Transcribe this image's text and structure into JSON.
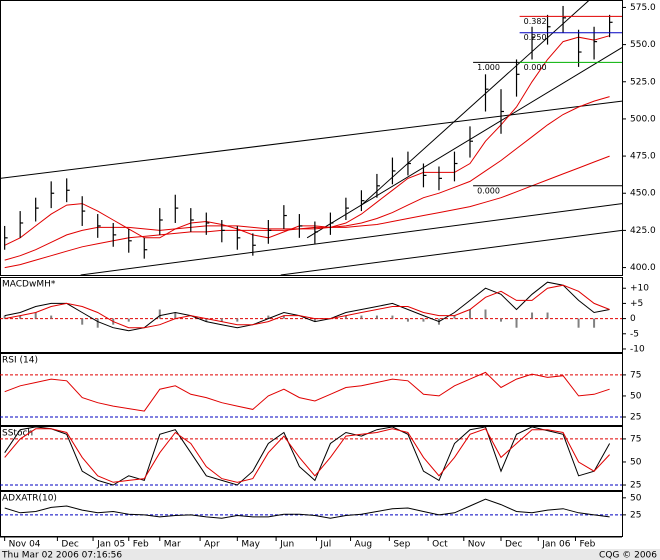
{
  "chart_data": [
    {
      "type": "ohlc",
      "color": "#000000",
      "xlim": [
        -0.3,
        39.8
      ],
      "xticks": [
        {
          "value": 0,
          "label": "Nov 04"
        },
        {
          "value": 3.4,
          "label": "Dec"
        },
        {
          "value": 5.7,
          "label": "Jan 05"
        },
        {
          "value": 8.0,
          "label": "Feb"
        },
        {
          "value": 10.0,
          "label": "Mar"
        },
        {
          "value": 12.6,
          "label": "Apr"
        },
        {
          "value": 15.0,
          "label": "May"
        },
        {
          "value": 17.5,
          "label": "Jun"
        },
        {
          "value": 20.1,
          "label": "Jul"
        },
        {
          "value": 22.3,
          "label": "Aug"
        },
        {
          "value": 24.8,
          "label": "Sep"
        },
        {
          "value": 27.3,
          "label": "Oct"
        },
        {
          "value": 29.6,
          "label": "Nov"
        },
        {
          "value": 32.0,
          "label": "Dec"
        },
        {
          "value": 34.4,
          "label": "Jan 06"
        },
        {
          "value": 36.8,
          "label": "Feb"
        }
      ],
      "ylim": [
        395,
        580
      ],
      "yticks": [
        {
          "value": 400,
          "label": "400.0"
        },
        {
          "value": 425,
          "label": "425.0"
        },
        {
          "value": 450,
          "label": "450.0"
        },
        {
          "value": 475,
          "label": "475.0"
        },
        {
          "value": 500,
          "label": "500.0"
        },
        {
          "value": 525,
          "label": "525.0"
        },
        {
          "value": 550,
          "label": "550.0"
        },
        {
          "value": 575,
          "label": "575.0"
        }
      ],
      "high": [
        428,
        438,
        447,
        458,
        460,
        448,
        436,
        430,
        426,
        420,
        440,
        449,
        440,
        437,
        432,
        428,
        423,
        432,
        442,
        436,
        431,
        437,
        447,
        452,
        463,
        474,
        478,
        470,
        468,
        478,
        495,
        530,
        520,
        540,
        562,
        570,
        576,
        560,
        562,
        570
      ],
      "low": [
        412,
        420,
        431,
        440,
        444,
        428,
        420,
        414,
        410,
        406,
        422,
        430,
        424,
        422,
        417,
        412,
        408,
        416,
        426,
        420,
        416,
        422,
        432,
        438,
        447,
        456,
        462,
        454,
        452,
        458,
        474,
        505,
        490,
        515,
        540,
        550,
        558,
        535,
        540,
        555
      ],
      "close": [
        420,
        430,
        440,
        450,
        452,
        438,
        428,
        422,
        418,
        412,
        432,
        440,
        432,
        430,
        425,
        420,
        415,
        425,
        435,
        428,
        424,
        430,
        440,
        445,
        455,
        465,
        470,
        462,
        460,
        470,
        485,
        520,
        505,
        530,
        555,
        562,
        568,
        545,
        552,
        565
      ],
      "ma_lines": [
        {
          "color": "#e00000",
          "values": [
            415,
            420,
            428,
            436,
            442,
            443,
            438,
            432,
            426,
            420,
            420,
            426,
            430,
            431,
            429,
            426,
            422,
            420,
            424,
            428,
            428,
            427,
            430,
            436,
            444,
            452,
            460,
            464,
            464,
            464,
            470,
            485,
            496,
            508,
            525,
            540,
            552,
            555,
            553,
            556
          ]
        },
        {
          "color": "#e00000",
          "values": [
            405,
            408,
            412,
            417,
            422,
            425,
            427,
            427,
            427,
            426,
            425,
            426,
            427,
            428,
            428,
            428,
            427,
            426,
            426,
            426,
            427,
            427,
            428,
            430,
            433,
            437,
            442,
            447,
            450,
            454,
            458,
            465,
            472,
            480,
            488,
            496,
            503,
            508,
            512,
            515
          ]
        },
        {
          "color": "#e00000",
          "values": [
            400,
            402,
            405,
            408,
            411,
            414,
            416,
            418,
            420,
            421,
            422,
            423,
            424,
            424,
            425,
            425,
            425,
            425,
            425,
            426,
            426,
            427,
            427,
            428,
            429,
            431,
            433,
            435,
            437,
            439,
            441,
            444,
            447,
            451,
            455,
            459,
            463,
            467,
            471,
            475
          ]
        }
      ],
      "trendlines": [
        {
          "x": [
            -0.3,
            39.8
          ],
          "y": [
            460,
            512
          ]
        },
        {
          "x": [
            4.9,
            39.8
          ],
          "y": [
            395,
            443
          ]
        },
        {
          "x": [
            17.8,
            39.8
          ],
          "y": [
            395,
            425
          ]
        },
        {
          "x": [
            23,
            37.7
          ],
          "y": [
            442,
            580
          ]
        },
        {
          "x": [
            19.5,
            39.8
          ],
          "y": [
            420,
            548
          ]
        }
      ],
      "fib_levels": [
        {
          "label": "1.000",
          "value": 538,
          "color": "#000000",
          "x": [
            30.2,
            33.2
          ]
        },
        {
          "label": "0.000",
          "value": 455,
          "color": "#000000",
          "x": [
            30.2,
            39.8
          ]
        },
        {
          "label": "0.382",
          "value": 569,
          "color": "#e00000",
          "x": [
            33.2,
            39.8
          ]
        },
        {
          "label": "0.250",
          "value": 558,
          "color": "#0000c0",
          "x": [
            33.2,
            39.8
          ]
        },
        {
          "label": "0.000",
          "value": 538,
          "color": "#00b000",
          "x": [
            33.2,
            39.8
          ]
        }
      ]
    },
    {
      "type": "line",
      "title": "MACDwMH*",
      "ylim": [
        -11,
        13.7
      ],
      "yticks": [
        {
          "value": 10,
          "label": "+10"
        },
        {
          "value": 5,
          "label": "+5"
        },
        0,
        -5,
        -10
      ],
      "ref_lines": [
        {
          "value": 0,
          "color": "#e00000"
        }
      ],
      "histogram": {
        "color": "#808080",
        "values": [
          1,
          1,
          2,
          1,
          0,
          -2,
          -3,
          -2,
          -1,
          0,
          3,
          2,
          0,
          -1,
          -1,
          -1,
          0,
          1,
          1,
          0,
          -1,
          0,
          1,
          1,
          1,
          1,
          -1,
          -1,
          -2,
          1,
          3,
          3,
          -1,
          -3,
          2,
          2,
          0,
          -3,
          -3,
          0
        ]
      },
      "series": [
        {
          "color": "#000000",
          "values": [
            1,
            2,
            4,
            5,
            5,
            2,
            -1,
            -3,
            -4,
            -3,
            1,
            2,
            1,
            -1,
            -2,
            -3,
            -2,
            0,
            2,
            1,
            -1,
            0,
            2,
            3,
            4,
            5,
            3,
            1,
            -1,
            2,
            6,
            10,
            8,
            3,
            8,
            12,
            11,
            6,
            2,
            3
          ]
        },
        {
          "color": "#e00000",
          "values": [
            0,
            1,
            2,
            4,
            5,
            4,
            2,
            -1,
            -3,
            -3,
            -2,
            0,
            1,
            0,
            -1,
            -2,
            -2,
            -1,
            1,
            1,
            0,
            0,
            1,
            2,
            3,
            4,
            4,
            2,
            1,
            1,
            3,
            7,
            9,
            6,
            6,
            10,
            11,
            9,
            5,
            3
          ]
        }
      ]
    },
    {
      "type": "line",
      "title": "RSI (14)",
      "ylim": [
        15.5,
        101
      ],
      "yticks": [
        75,
        50,
        25
      ],
      "ref_lines": [
        {
          "value": 75,
          "color": "#e00000"
        },
        {
          "value": 25,
          "color": "#0000c0"
        }
      ],
      "series": [
        {
          "color": "#e00000",
          "values": [
            55,
            62,
            66,
            70,
            68,
            48,
            42,
            38,
            35,
            32,
            58,
            62,
            52,
            48,
            42,
            38,
            34,
            50,
            58,
            48,
            44,
            52,
            60,
            62,
            66,
            70,
            68,
            52,
            50,
            62,
            70,
            78,
            60,
            70,
            76,
            72,
            74,
            50,
            52,
            58
          ]
        }
      ]
    },
    {
      "type": "line",
      "title": "SStoch",
      "ylim": [
        19.6,
        89
      ],
      "yticks": [
        75,
        50,
        25
      ],
      "ref_lines": [
        {
          "value": 75,
          "color": "#e00000"
        },
        {
          "value": 25,
          "color": "#0000c0"
        }
      ],
      "series": [
        {
          "color": "#000000",
          "values": [
            60,
            85,
            88,
            86,
            80,
            40,
            30,
            25,
            35,
            30,
            80,
            85,
            60,
            35,
            30,
            25,
            40,
            70,
            82,
            45,
            30,
            70,
            82,
            78,
            85,
            88,
            80,
            40,
            30,
            70,
            85,
            88,
            40,
            80,
            88,
            84,
            80,
            35,
            40,
            70
          ]
        },
        {
          "color": "#e00000",
          "values": [
            55,
            75,
            86,
            86,
            82,
            55,
            35,
            28,
            30,
            32,
            60,
            82,
            70,
            45,
            32,
            28,
            32,
            60,
            78,
            55,
            35,
            55,
            78,
            80,
            82,
            86,
            82,
            55,
            35,
            55,
            80,
            86,
            55,
            70,
            85,
            85,
            82,
            50,
            40,
            58
          ]
        }
      ]
    },
    {
      "type": "line",
      "title": "ADXATR(10)",
      "ylim": [
        -6,
        60
      ],
      "yticks": [
        50,
        25
      ],
      "ref_lines": [
        {
          "value": 25,
          "color": "#0000c0"
        }
      ],
      "series": [
        {
          "color": "#000000",
          "values": [
            35,
            28,
            30,
            36,
            38,
            32,
            28,
            30,
            26,
            25,
            22,
            24,
            25,
            22,
            20,
            24,
            22,
            22,
            26,
            26,
            24,
            20,
            24,
            26,
            30,
            34,
            35,
            30,
            25,
            28,
            38,
            48,
            40,
            30,
            28,
            32,
            34,
            28,
            25,
            22
          ]
        }
      ]
    }
  ],
  "status": {
    "timestamp": "Thu Mar 02 2006 07:16:56",
    "copyright": "CQG © 2006"
  }
}
